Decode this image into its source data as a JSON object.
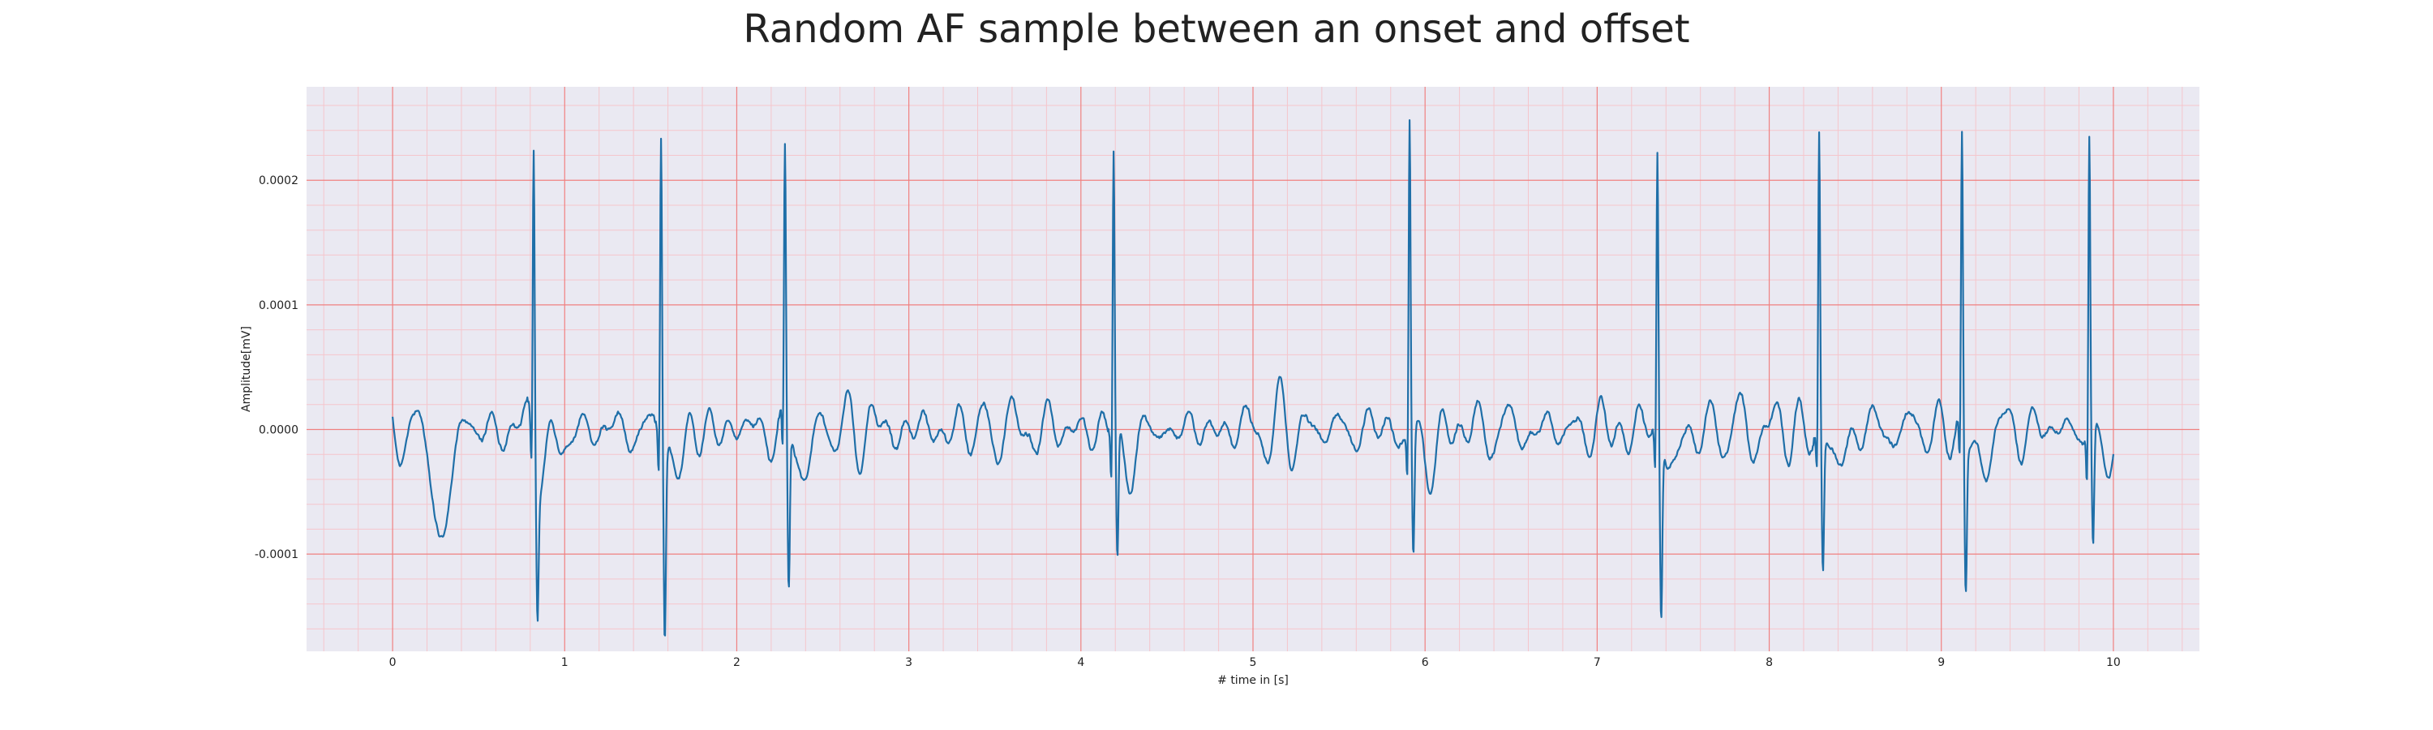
{
  "chart_data": {
    "type": "line",
    "title": "Random AF sample between an onset and offset",
    "xlabel": "# time in [s]",
    "ylabel": "Amplitude[mV]",
    "xlim": [
      -0.5,
      10.5
    ],
    "ylim": [
      -0.000178,
      0.000275
    ],
    "x_ticks": [
      0,
      1,
      2,
      3,
      4,
      5,
      6,
      7,
      8,
      9,
      10
    ],
    "y_ticks": [
      -0.0001,
      0.0,
      0.0001,
      0.0002
    ],
    "y_tick_labels": [
      "-0.0001",
      "0.0000",
      "0.0001",
      "0.0002"
    ],
    "grid": true,
    "minor_grid": true,
    "colors": {
      "plot_background": "#eae9f2",
      "major_grid": "#f08080",
      "minor_grid": "#f5c6cc",
      "line": "#1f6fa8"
    },
    "series": [
      {
        "sample_rate_hz": 300,
        "duration_s": 10,
        "r_peaks_s": [
          0.82,
          1.56,
          2.28,
          4.19,
          5.91,
          7.35,
          8.29,
          9.12,
          9.86
        ],
        "r_peak_mV": [
          0.000242,
          0.000246,
          0.000213,
          0.000229,
          0.000255,
          0.000222,
          0.000236,
          0.000235,
          0.000246
        ],
        "s_trough_mV": [
          -0.000107,
          -0.000158,
          -0.000134,
          -0.000106,
          -0.0001,
          -0.000143,
          -0.000113,
          -0.000126,
          -9.3e-05
        ],
        "baseline_range_mV": [
          -3e-05,
          3e-05
        ],
        "initial_dip": {
          "x": 0.28,
          "y": -9.8e-05
        }
      }
    ]
  }
}
